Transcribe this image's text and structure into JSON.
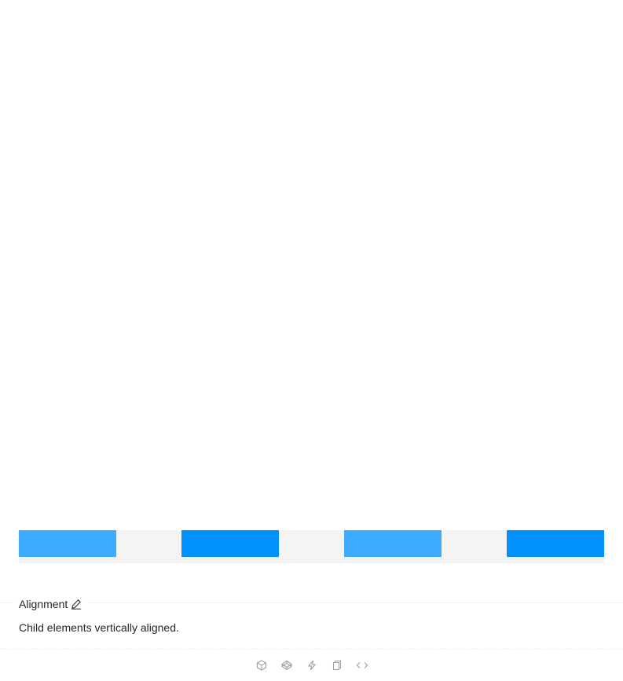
{
  "demo": {
    "columns": [
      {
        "shade": "light",
        "color": "#3dabff"
      },
      {
        "shade": "dark",
        "color": "#0091ff"
      },
      {
        "shade": "light",
        "color": "#3dabff"
      },
      {
        "shade": "dark",
        "color": "#0091ff"
      }
    ],
    "row_background": "#f4f4f4"
  },
  "section": {
    "title": "Alignment",
    "description": "Child elements vertically aligned."
  },
  "actions": [
    {
      "icon": "codesandbox-icon"
    },
    {
      "icon": "codepen-icon"
    },
    {
      "icon": "stackblitz-icon"
    },
    {
      "icon": "copy-icon"
    },
    {
      "icon": "code-expand-icon"
    }
  ]
}
